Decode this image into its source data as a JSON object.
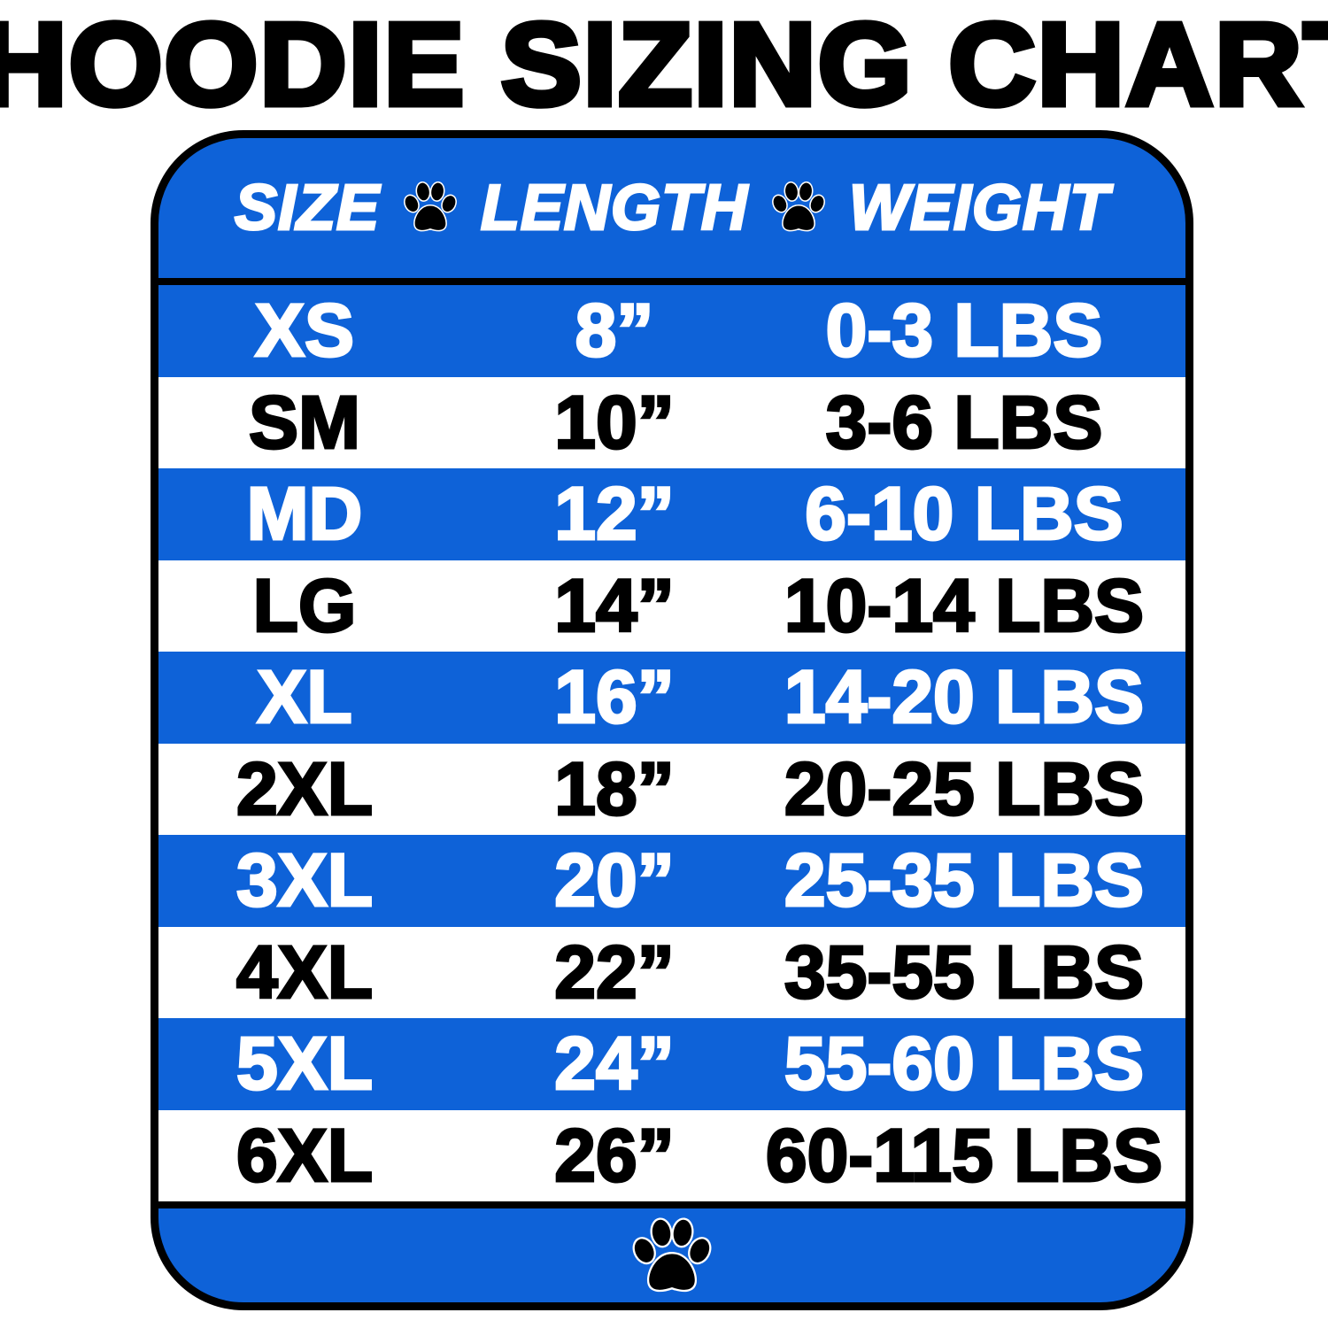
{
  "title": "HOODIE SIZING CHART",
  "colors": {
    "blue": "#0e62d8",
    "white": "#ffffff",
    "black": "#000000"
  },
  "header": {
    "columns": [
      "SIZE",
      "LENGTH",
      "WEIGHT"
    ],
    "separator_icon": "paw-print-icon"
  },
  "rows": [
    {
      "size": "XS",
      "length": "8”",
      "weight": "0-3 LBS"
    },
    {
      "size": "SM",
      "length": "10”",
      "weight": "3-6 LBS"
    },
    {
      "size": "MD",
      "length": "12”",
      "weight": "6-10 LBS"
    },
    {
      "size": "LG",
      "length": "14”",
      "weight": "10-14 LBS"
    },
    {
      "size": "XL",
      "length": "16”",
      "weight": "14-20 LBS"
    },
    {
      "size": "2XL",
      "length": "18”",
      "weight": "20-25 LBS"
    },
    {
      "size": "3XL",
      "length": "20”",
      "weight": "25-35 LBS"
    },
    {
      "size": "4XL",
      "length": "22”",
      "weight": "35-55 LBS"
    },
    {
      "size": "5XL",
      "length": "24”",
      "weight": "55-60 LBS"
    },
    {
      "size": "6XL",
      "length": "26”",
      "weight": "60-115 LBS"
    }
  ],
  "footer": {
    "icon": "paw-print-icon"
  }
}
